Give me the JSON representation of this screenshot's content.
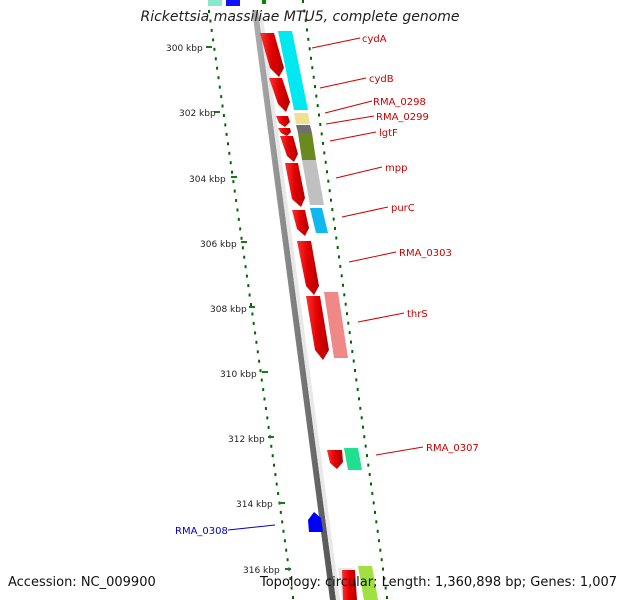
{
  "title": "Rickettsia massiliae MTU5, complete genome",
  "footer": {
    "accession": "Accession: NC_009900",
    "summary": "Topology: circular; Length: 1,360,898 bp; Genes: 1,007"
  },
  "scale_labels": [
    "300 kbp",
    "302 kbp",
    "304 kbp",
    "306 kbp",
    "308 kbp",
    "310 kbp",
    "312 kbp",
    "314 kbp",
    "316 kbp"
  ],
  "genes": [
    {
      "name": "cydA",
      "color": "#cc0000"
    },
    {
      "name": "cydB",
      "color": "#cc0000"
    },
    {
      "name": "RMA_0298",
      "color": "#cc0000"
    },
    {
      "name": "RMA_0299",
      "color": "#cc0000"
    },
    {
      "name": "lgtF",
      "color": "#cc0000"
    },
    {
      "name": "mpp",
      "color": "#cc0000"
    },
    {
      "name": "purC",
      "color": "#cc0000"
    },
    {
      "name": "RMA_0303",
      "color": "#cc0000"
    },
    {
      "name": "thrS",
      "color": "#cc0000"
    },
    {
      "name": "RMA_0307",
      "color": "#cc0000"
    },
    {
      "name": "RMA_0308",
      "color": "#0000cc"
    }
  ],
  "colors": {
    "forward_cds": "#ff0000",
    "reverse_cds": "#0000ff",
    "gc_skew": "#006600",
    "backbone": "#808080"
  }
}
